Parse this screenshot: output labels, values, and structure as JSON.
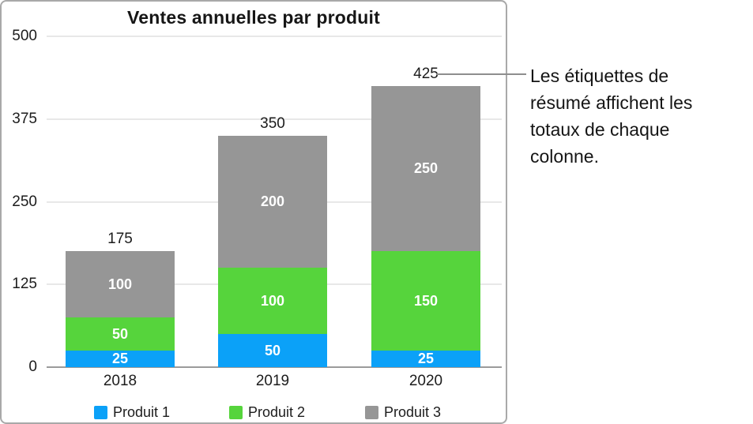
{
  "figure": {
    "callout": {
      "lines": [
        "Les étiquettes de",
        "résumé affichent les",
        "totaux de chaque",
        "colonne."
      ]
    }
  },
  "chart_data": {
    "type": "bar",
    "stacked": true,
    "title": "Ventes annuelles par produit",
    "categories": [
      "2018",
      "2019",
      "2020"
    ],
    "series": [
      {
        "name": "Produit 1",
        "color": "#0ba1f8",
        "values": [
          25,
          50,
          25
        ]
      },
      {
        "name": "Produit 2",
        "color": "#56d43c",
        "values": [
          50,
          100,
          150
        ]
      },
      {
        "name": "Produit 3",
        "color": "#969696",
        "values": [
          100,
          200,
          250
        ]
      }
    ],
    "totals": [
      175,
      350,
      425
    ],
    "segment_labels": [
      [
        "25",
        "50",
        "100"
      ],
      [
        "50",
        "100",
        "200"
      ],
      [
        "25",
        "150",
        "250"
      ]
    ],
    "yticks": [
      0,
      125,
      250,
      375,
      500
    ],
    "ylim": [
      0,
      500
    ],
    "grid": true,
    "legend_position": "bottom"
  }
}
